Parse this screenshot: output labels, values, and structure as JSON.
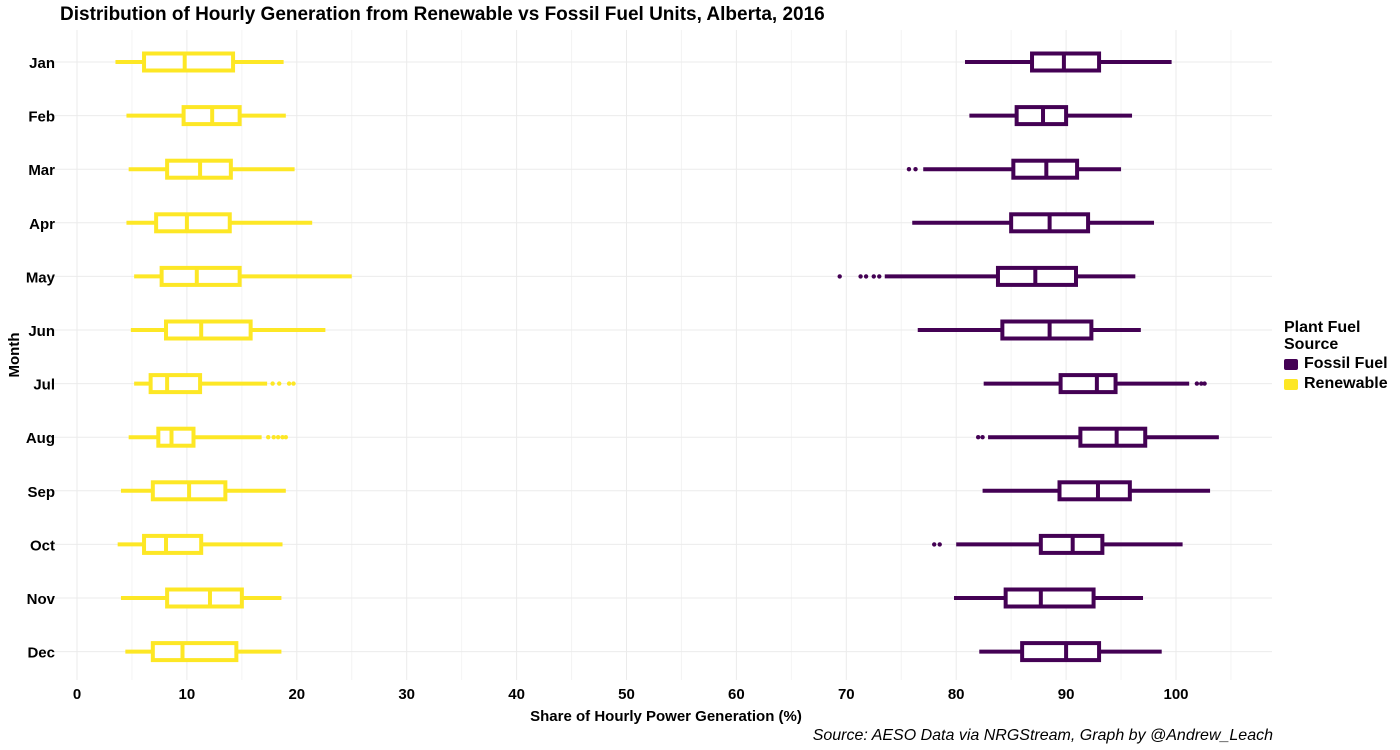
{
  "chart_data": {
    "type": "boxplot",
    "orientation": "horizontal",
    "title": "Distribution of Hourly Generation from Renewable vs Fossil Fuel Units, Alberta, 2016",
    "xlabel": "Share of Hourly Power Generation (%)",
    "ylabel": "Month",
    "caption": "Source: AESO Data via NRGStream, Graph by @Andrew_Leach",
    "xlim": [
      -3,
      109
    ],
    "xticks": [
      0,
      10,
      20,
      30,
      40,
      50,
      60,
      70,
      80,
      90,
      100
    ],
    "grid": true,
    "legend": {
      "title": "Plant Fuel Source",
      "placement": "right",
      "entries": [
        {
          "name": "Fossil Fuel",
          "color": "#440154"
        },
        {
          "name": "Renewable",
          "color": "#FDE725"
        }
      ]
    },
    "categories": [
      "Jan",
      "Feb",
      "Mar",
      "Apr",
      "May",
      "Jun",
      "Jul",
      "Aug",
      "Sep",
      "Oct",
      "Nov",
      "Dec"
    ],
    "series": [
      {
        "name": "Fossil Fuel",
        "color": "#440154",
        "boxes": [
          {
            "min": 80.8,
            "q1": 86.9,
            "median": 89.8,
            "q3": 93.0,
            "max": 99.6,
            "outliers": []
          },
          {
            "min": 81.2,
            "q1": 85.5,
            "median": 87.9,
            "q3": 90.0,
            "max": 96.0,
            "outliers": []
          },
          {
            "min": 77.0,
            "q1": 85.2,
            "median": 88.2,
            "q3": 91.0,
            "max": 95.0,
            "outliers": [
              75.7,
              76.3
            ]
          },
          {
            "min": 76.0,
            "q1": 85.0,
            "median": 88.5,
            "q3": 92.0,
            "max": 98.0,
            "outliers": []
          },
          {
            "min": 73.5,
            "q1": 83.8,
            "median": 87.2,
            "q3": 90.9,
            "max": 96.3,
            "outliers": [
              69.4,
              71.3,
              71.8,
              72.5,
              73.0
            ]
          },
          {
            "min": 76.5,
            "q1": 84.2,
            "median": 88.5,
            "q3": 92.3,
            "max": 96.8,
            "outliers": []
          },
          {
            "min": 82.5,
            "q1": 89.5,
            "median": 92.8,
            "q3": 94.5,
            "max": 101.2,
            "outliers": [
              101.9,
              102.3,
              102.6
            ]
          },
          {
            "min": 82.9,
            "q1": 91.3,
            "median": 94.6,
            "q3": 97.2,
            "max": 103.9,
            "outliers": [
              82.0,
              82.4
            ]
          },
          {
            "min": 82.4,
            "q1": 89.4,
            "median": 92.9,
            "q3": 95.8,
            "max": 103.1,
            "outliers": []
          },
          {
            "min": 80.0,
            "q1": 87.7,
            "median": 90.6,
            "q3": 93.3,
            "max": 100.6,
            "outliers": [
              78.0,
              78.5
            ]
          },
          {
            "min": 79.8,
            "q1": 84.5,
            "median": 87.7,
            "q3": 92.5,
            "max": 97.0,
            "outliers": []
          },
          {
            "min": 82.1,
            "q1": 86.0,
            "median": 90.0,
            "q3": 93.0,
            "max": 98.7,
            "outliers": []
          }
        ]
      },
      {
        "name": "Renewable",
        "color": "#FDE725",
        "boxes": [
          {
            "min": 3.5,
            "q1": 6.1,
            "median": 9.8,
            "q3": 14.2,
            "max": 18.8,
            "outliers": []
          },
          {
            "min": 4.5,
            "q1": 9.7,
            "median": 12.3,
            "q3": 14.8,
            "max": 19.0,
            "outliers": []
          },
          {
            "min": 4.7,
            "q1": 8.2,
            "median": 11.2,
            "q3": 14.0,
            "max": 19.8,
            "outliers": []
          },
          {
            "min": 4.5,
            "q1": 7.2,
            "median": 10.0,
            "q3": 13.9,
            "max": 21.4,
            "outliers": []
          },
          {
            "min": 5.2,
            "q1": 7.7,
            "median": 10.9,
            "q3": 14.8,
            "max": 25.0,
            "outliers": []
          },
          {
            "min": 4.9,
            "q1": 8.1,
            "median": 11.3,
            "q3": 15.8,
            "max": 22.6,
            "outliers": []
          },
          {
            "min": 5.2,
            "q1": 6.7,
            "median": 8.2,
            "q3": 11.2,
            "max": 17.3,
            "outliers": [
              17.8,
              18.4,
              19.3,
              19.7
            ]
          },
          {
            "min": 4.7,
            "q1": 7.4,
            "median": 8.6,
            "q3": 10.6,
            "max": 16.8,
            "outliers": [
              17.4,
              17.9,
              18.3,
              18.7,
              19.0
            ]
          },
          {
            "min": 4.0,
            "q1": 6.9,
            "median": 10.2,
            "q3": 13.5,
            "max": 19.0,
            "outliers": []
          },
          {
            "min": 3.7,
            "q1": 6.1,
            "median": 8.1,
            "q3": 11.3,
            "max": 18.7,
            "outliers": []
          },
          {
            "min": 4.0,
            "q1": 8.2,
            "median": 12.1,
            "q3": 15.0,
            "max": 18.6,
            "outliers": []
          },
          {
            "min": 4.4,
            "q1": 6.9,
            "median": 9.6,
            "q3": 14.5,
            "max": 18.6,
            "outliers": []
          }
        ]
      }
    ]
  }
}
